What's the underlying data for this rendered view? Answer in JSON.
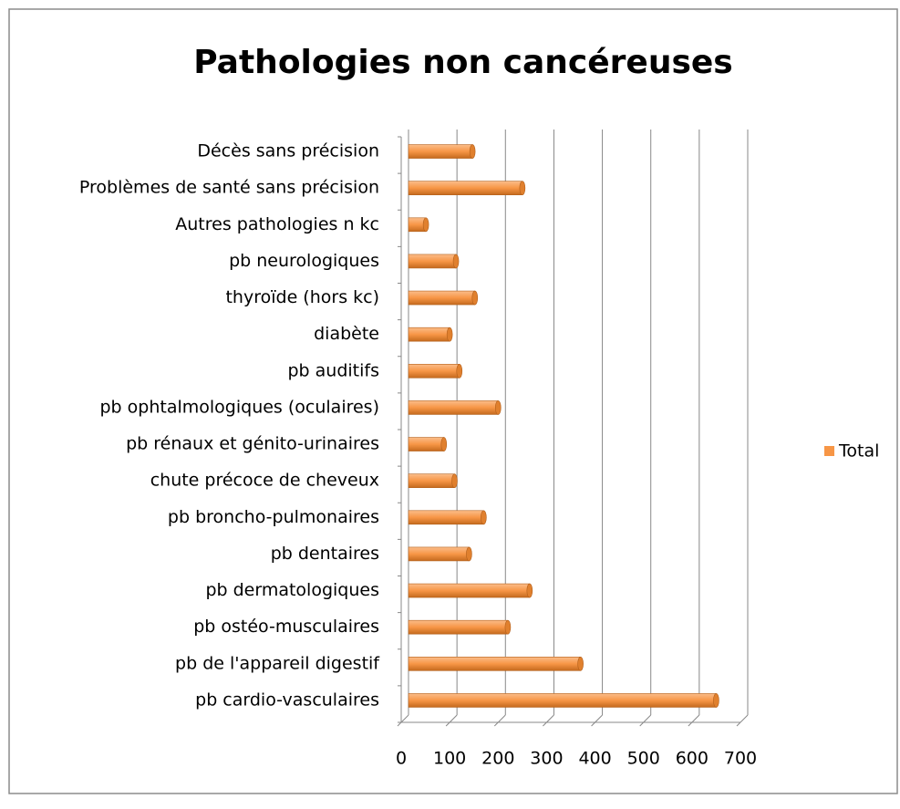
{
  "chart_data": {
    "type": "bar",
    "orientation": "horizontal",
    "title": "Pathologies non cancéreuses",
    "categories": [
      "pb cardio-vasculaires",
      "pb  de l'appareil digestif",
      "pb ostéo-musculaires",
      "pb dermatologiques",
      "pb dentaires",
      "pb broncho-pulmonaires",
      "chute précoce de cheveux",
      "pb rénaux et génito-urinaires",
      "pb ophtalmologiques (oculaires)",
      "pb auditifs",
      "diabète",
      "thyroïde (hors kc)",
      "pb neurologiques",
      "Autres pathologies n kc",
      "Problèmes de santé sans précision",
      "Décès sans précision"
    ],
    "series": [
      {
        "name": "Total",
        "color": "#f79646",
        "values": [
          650,
          370,
          220,
          265,
          140,
          170,
          110,
          88,
          200,
          120,
          100,
          152,
          113,
          51,
          250,
          147
        ]
      }
    ],
    "xlim": [
      0,
      700
    ],
    "xticks": [
      0,
      100,
      200,
      300,
      400,
      500,
      600,
      700
    ],
    "grid": true,
    "legend": "right"
  }
}
